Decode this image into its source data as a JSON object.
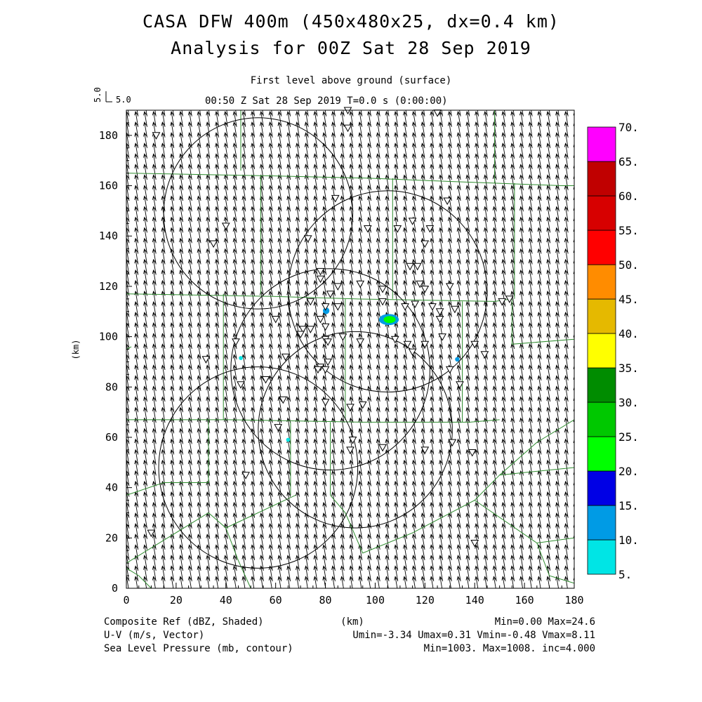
{
  "header": {
    "title_line1": "CASA DFW 400m (450x480x25, dx=0.4 km)",
    "title_line2": "Analysis for 00Z Sat 28 Sep 2019",
    "subtitle_line1": "First level above ground (surface)",
    "subtitle_line2": "00:50 Z Sat 28 Sep 2019    T=0.0 s (0:00:00)",
    "vector_key_label": "5.0",
    "vector_key_value": "5.0"
  },
  "footer": {
    "field1": "Composite Ref (dBZ, Shaded)",
    "field2": "U-V (m/s, Vector)",
    "field3": "Sea Level Pressure (mb, contour)",
    "xunit": "(km)",
    "stats1": "Min=0.00 Max=24.6",
    "stats2": "Umin=-3.34 Umax=0.31 Vmin=-0.48 Vmax=8.11",
    "stats3": "Min=1003. Max=1008. inc=4.000"
  },
  "chart_data": {
    "type": "heatmap",
    "xlabel": "",
    "ylabel": "(km)",
    "xlim": [
      0,
      180
    ],
    "ylim": [
      0,
      190
    ],
    "xticks": [
      0,
      20,
      40,
      60,
      80,
      100,
      120,
      140,
      160,
      180
    ],
    "yticks": [
      0,
      20,
      40,
      60,
      80,
      100,
      120,
      140,
      160,
      180
    ],
    "wind_vector": {
      "u": -0.7,
      "v": 4.2
    },
    "colorbar": {
      "labels": [
        "5.",
        "10.",
        "15.",
        "20.",
        "25.",
        "30.",
        "35.",
        "40.",
        "45.",
        "50.",
        "55.",
        "60.",
        "65.",
        "70."
      ],
      "colors": [
        "#00e5e5",
        "#009be5",
        "#0000e5",
        "#00ff00",
        "#00c800",
        "#008c00",
        "#ffff00",
        "#e5b900",
        "#ff8c00",
        "#ff0000",
        "#d70000",
        "#c00000",
        "#ff00ff"
      ]
    },
    "echoes": [
      {
        "x": 80.3,
        "y": 110.3,
        "rx": 1.3,
        "ry": 1.3,
        "color": "#009be5"
      },
      {
        "x": 105.5,
        "y": 106.8,
        "rx": 4.0,
        "ry": 2.2,
        "color": "#009be5"
      },
      {
        "x": 105.8,
        "y": 106.8,
        "rx": 2.4,
        "ry": 1.4,
        "color": "#00ff00"
      },
      {
        "x": 46.0,
        "y": 91.5,
        "rx": 0.8,
        "ry": 0.8,
        "color": "#00e5e5"
      },
      {
        "x": 133.0,
        "y": 91.0,
        "rx": 0.9,
        "ry": 0.9,
        "color": "#009be5"
      },
      {
        "x": 65.0,
        "y": 59.0,
        "rx": 0.8,
        "ry": 0.8,
        "color": "#00e5e5"
      }
    ],
    "radar_circles": [
      {
        "x": 53,
        "y": 149,
        "r": 38
      },
      {
        "x": 105,
        "y": 118,
        "r": 40
      },
      {
        "x": 82,
        "y": 87,
        "r": 40
      },
      {
        "x": 92,
        "y": 63,
        "r": 39
      },
      {
        "x": 53,
        "y": 48,
        "r": 40
      }
    ],
    "boundaries": [
      [
        [
          0,
          165
        ],
        [
          54,
          164
        ],
        [
          97,
          163
        ],
        [
          122,
          162
        ],
        [
          148,
          161
        ],
        [
          175,
          160
        ],
        [
          180,
          160
        ]
      ],
      [
        [
          0,
          117
        ],
        [
          59,
          116
        ],
        [
          92,
          115
        ],
        [
          148,
          114
        ],
        [
          155,
          115
        ]
      ],
      [
        [
          0,
          67
        ],
        [
          41,
          67
        ],
        [
          95,
          66
        ],
        [
          138,
          66
        ],
        [
          150,
          67
        ]
      ],
      [
        [
          0,
          95
        ],
        [
          2,
          96
        ]
      ],
      [
        [
          46,
          190
        ],
        [
          46,
          166
        ]
      ],
      [
        [
          54,
          164
        ],
        [
          54,
          117
        ]
      ],
      [
        [
          107,
          163
        ],
        [
          107,
          115
        ]
      ],
      [
        [
          148,
          190
        ],
        [
          148,
          161
        ]
      ],
      [
        [
          156,
          161
        ],
        [
          156,
          115
        ]
      ],
      [
        [
          155,
          115
        ],
        [
          155,
          97
        ],
        [
          180,
          99
        ]
      ],
      [
        [
          39,
          117
        ],
        [
          39,
          67
        ]
      ],
      [
        [
          88,
          115
        ],
        [
          88,
          67
        ]
      ],
      [
        [
          135,
          114
        ],
        [
          135,
          66
        ]
      ],
      [
        [
          33,
          67
        ],
        [
          33,
          42
        ],
        [
          15,
          42
        ],
        [
          0,
          37
        ]
      ],
      [
        [
          66,
          66
        ],
        [
          66,
          37
        ]
      ],
      [
        [
          82,
          66
        ],
        [
          82,
          37
        ]
      ],
      [
        [
          0,
          10
        ],
        [
          33,
          30
        ],
        [
          40,
          24
        ],
        [
          68,
          37
        ]
      ],
      [
        [
          82,
          37
        ],
        [
          88,
          30
        ],
        [
          95,
          14
        ],
        [
          115,
          22
        ],
        [
          140,
          35
        ],
        [
          150,
          45
        ],
        [
          165,
          58
        ],
        [
          180,
          67
        ]
      ],
      [
        [
          150,
          45
        ],
        [
          180,
          48
        ]
      ],
      [
        [
          140,
          35
        ],
        [
          165,
          18
        ],
        [
          180,
          20
        ]
      ],
      [
        [
          165,
          18
        ],
        [
          170,
          5
        ],
        [
          180,
          2
        ]
      ],
      [
        [
          0,
          8
        ],
        [
          5,
          5
        ],
        [
          10,
          0
        ]
      ],
      [
        [
          40,
          24
        ],
        [
          45,
          11
        ],
        [
          50,
          0
        ]
      ]
    ],
    "stations": [
      [
        89,
        190
      ],
      [
        89,
        183
      ],
      [
        125,
        189
      ],
      [
        12,
        180
      ],
      [
        84,
        155
      ],
      [
        129,
        154
      ],
      [
        40,
        144
      ],
      [
        73,
        139
      ],
      [
        97,
        143
      ],
      [
        109,
        143
      ],
      [
        115,
        146
      ],
      [
        122,
        143
      ],
      [
        35,
        137
      ],
      [
        120,
        137
      ],
      [
        114,
        128
      ],
      [
        117,
        128
      ],
      [
        78,
        126
      ],
      [
        78,
        123
      ],
      [
        85,
        120
      ],
      [
        94,
        121
      ],
      [
        118,
        121
      ],
      [
        120,
        119
      ],
      [
        130,
        120
      ],
      [
        103,
        119
      ],
      [
        82,
        117
      ],
      [
        74,
        114
      ],
      [
        103,
        114
      ],
      [
        154,
        115
      ],
      [
        151,
        114
      ],
      [
        80,
        112
      ],
      [
        85,
        112
      ],
      [
        112,
        112
      ],
      [
        116,
        113
      ],
      [
        123,
        112
      ],
      [
        126,
        110
      ],
      [
        132,
        111
      ],
      [
        126,
        107
      ],
      [
        60,
        107
      ],
      [
        78,
        107
      ],
      [
        80,
        104
      ],
      [
        74,
        103
      ],
      [
        71,
        103
      ],
      [
        70,
        101
      ],
      [
        87,
        100
      ],
      [
        80,
        99
      ],
      [
        81,
        98
      ],
      [
        44,
        98
      ],
      [
        94,
        98
      ],
      [
        108,
        99
      ],
      [
        113,
        97
      ],
      [
        120,
        97
      ],
      [
        115,
        94
      ],
      [
        127,
        100
      ],
      [
        140,
        97
      ],
      [
        144,
        93
      ],
      [
        64,
        92
      ],
      [
        81,
        90
      ],
      [
        78,
        88
      ],
      [
        80,
        87
      ],
      [
        77,
        87
      ],
      [
        130,
        87
      ],
      [
        32,
        91
      ],
      [
        46,
        81
      ],
      [
        56,
        83
      ],
      [
        134,
        81
      ],
      [
        63,
        75
      ],
      [
        80,
        74
      ],
      [
        90,
        72
      ],
      [
        95,
        73
      ],
      [
        61,
        64
      ],
      [
        91,
        59
      ],
      [
        103,
        56
      ],
      [
        48,
        45
      ],
      [
        90,
        55
      ],
      [
        120,
        55
      ],
      [
        131,
        58
      ],
      [
        139,
        54
      ],
      [
        10,
        22
      ],
      [
        140,
        18
      ]
    ]
  }
}
